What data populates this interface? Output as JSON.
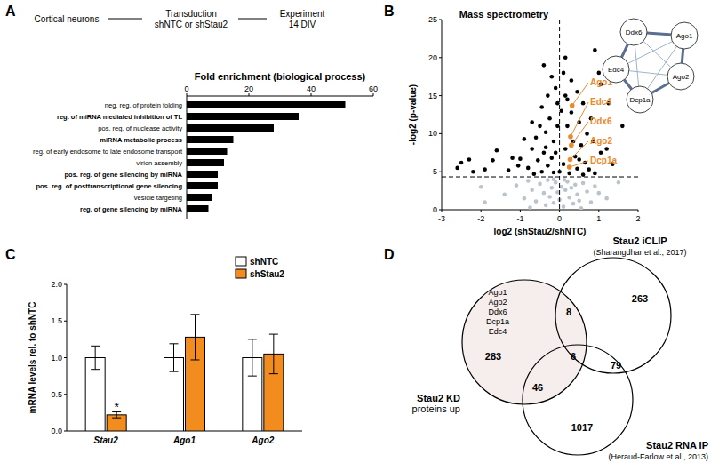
{
  "panel_labels": [
    "A",
    "B",
    "C",
    "D"
  ],
  "schematic": {
    "steps": [
      [
        "Cortical neurons"
      ],
      [
        "Transduction",
        "shNTC or shStau2"
      ],
      [
        "Experiment",
        "14 DIV"
      ]
    ]
  },
  "chart_data": [
    {
      "type": "bar",
      "orientation": "horizontal",
      "title": "Fold enrichment (biological process)",
      "categories": [
        "neg. reg. of protein folding",
        "reg. of miRNA mediated inhibition of TL",
        "pos. reg. of nuclease activity",
        "miRNA metabolic process",
        "reg. of early endosome to late endosome transport",
        "virion assembly",
        "pos. reg. of gene silencing by miRNA",
        "pos. reg. of posttranscriptional gene silencing",
        "vesicle targeting",
        "reg. of gene silencing by miRNA"
      ],
      "values": [
        51,
        36,
        28,
        15,
        13,
        12,
        10,
        10,
        8,
        7
      ],
      "color": "#000000",
      "xlim": [
        0,
        60
      ],
      "xticks": [
        0,
        20,
        40,
        60
      ]
    },
    {
      "type": "scatter",
      "title": "Mass spectrometry",
      "xlabel": "log2 (shStau2/shNTC)",
      "ylabel": "-log2 (p-value)",
      "xlim": [
        -3,
        2
      ],
      "xticks": [
        -3,
        -2,
        -1,
        0,
        1,
        2
      ],
      "ylim": [
        0,
        25
      ],
      "yticks": [
        0,
        5,
        10,
        15,
        20,
        25
      ],
      "reference_lines": [
        {
          "axis": "y",
          "value": 4.32
        },
        {
          "axis": "x",
          "value": 0
        }
      ],
      "series": [
        {
          "color": "#b8c5cf",
          "x": [
            -1.4,
            -1.1,
            -0.9,
            -0.8,
            -0.7,
            -0.6,
            -0.5,
            -0.4,
            -0.35,
            -0.3,
            -0.25,
            -0.2,
            -0.15,
            -0.1,
            -0.05,
            0,
            0.05,
            0.1,
            0.15,
            0.2,
            0.25,
            0.3,
            0.35,
            0.4,
            0.45,
            0.5,
            0.6,
            0.7,
            0.8,
            0.9,
            1.0,
            1.2,
            -1.9,
            -2.0,
            1.5,
            -0.75,
            0.55,
            -0.15,
            0.12
          ],
          "values": [
            2.0,
            3.2,
            1.5,
            3.8,
            2.6,
            1.1,
            3.4,
            2.2,
            0.6,
            3.9,
            1.7,
            2.9,
            0.9,
            3.6,
            2.3,
            1.3,
            3.0,
            0.4,
            2.6,
            3.7,
            1.6,
            2.9,
            0.8,
            3.3,
            2.0,
            1.2,
            3.5,
            2.4,
            1.0,
            3.1,
            2.2,
            1.5,
            1.0,
            3.0,
            3.6,
            0.3,
            0.2,
            4.0,
            3.95
          ]
        },
        {
          "color": "#000000",
          "x": [
            -2.5,
            -2.3,
            -2.6,
            -2.2,
            -1.9,
            -1.6,
            -1.7,
            -1.2,
            -1.0,
            -0.9,
            -1.3,
            -0.7,
            -0.45,
            -0.3,
            -0.2,
            -0.1,
            0.1,
            0.15,
            0.3,
            0.45,
            0.6,
            0.9,
            0.8,
            1.0,
            1.05,
            1.25,
            1.6,
            1.2,
            0.7,
            0.5,
            -0.5,
            -0.6,
            -0.35,
            -0.25,
            -0.15,
            -0.05,
            0.05,
            0.2,
            0.35,
            0.4,
            0.55,
            0.65,
            0.75,
            0.9,
            -0.8,
            -0.55,
            -0.4,
            -0.3,
            -0.2,
            -0.1,
            0.0,
            0.1,
            0.15,
            0.25,
            0.45,
            0.5,
            0.6,
            -0.65,
            -0.45,
            -0.15,
            0.3,
            -0.05,
            0.2,
            -0.35,
            -0.7,
            -1.05,
            1.05,
            1.35,
            0.85,
            0.15,
            -0.4
          ],
          "values": [
            6.2,
            6.6,
            5.5,
            5.0,
            5.3,
            7.8,
            6.5,
            6.8,
            6.7,
            9.3,
            5.2,
            8.0,
            13.5,
            15,
            17.5,
            16,
            18,
            15,
            17,
            15.5,
            14,
            21,
            12,
            18,
            16.5,
            14,
            11,
            8,
            10,
            11.5,
            11,
            9.5,
            10.2,
            12,
            9,
            11,
            13,
            11,
            9,
            7,
            8.5,
            6.2,
            5.3,
            4.8,
            5.5,
            6.5,
            7.5,
            5.8,
            6.8,
            7.5,
            5.0,
            6.0,
            8.0,
            4.8,
            5.4,
            6.6,
            4.6,
            4.7,
            5.0,
            4.9,
            12.8,
            14,
            14.5,
            8.2,
            11.5,
            5.8,
            7.5,
            6,
            9,
            20,
            19
          ]
        },
        {
          "color": "#e98a2f",
          "labels": [
            "Ago1",
            "Edc4",
            "Ddx6",
            "Ago2",
            "Dcp1a"
          ],
          "x": [
            0.32,
            0.28,
            0.3,
            0.27,
            0.25
          ],
          "values": [
            13.7,
            9.6,
            8.5,
            6.6,
            5.6
          ]
        }
      ]
    },
    {
      "type": "bar",
      "ylabel": "mRNA levels rel. to shNTC",
      "categories": [
        "Stau2",
        "Ago1",
        "Ago2"
      ],
      "ylim": [
        0,
        2
      ],
      "yticks": [
        {
          "value": 0,
          "label": "0.0"
        },
        {
          "value": 0.5,
          "label": "0.5"
        },
        {
          "value": 1,
          "label": "1.0"
        },
        {
          "value": 1.5,
          "label": "1.5"
        },
        {
          "value": 2,
          "label": "2.0"
        }
      ],
      "legend": "top-right",
      "series": [
        {
          "name": "shNTC",
          "color": "#ffffff",
          "values": [
            1.0,
            1.0,
            1.0
          ],
          "errors": [
            0.16,
            0.19,
            0.25
          ]
        },
        {
          "name": "shStau2",
          "color": "#f28c1e",
          "values": [
            0.22,
            1.28,
            1.05
          ],
          "errors": [
            0.04,
            0.31,
            0.27
          ]
        }
      ],
      "annotations": [
        {
          "text": "*",
          "category": 0,
          "series": 1
        }
      ]
    }
  ],
  "network": {
    "nodes": [
      "Ddx6",
      "Ago1",
      "Edc4",
      "Ago2",
      "Dcp1a"
    ],
    "edges": [
      [
        0,
        1
      ],
      [
        0,
        2
      ],
      [
        0,
        3
      ],
      [
        0,
        4
      ],
      [
        1,
        2
      ],
      [
        1,
        3
      ],
      [
        1,
        4
      ],
      [
        2,
        3
      ],
      [
        2,
        4
      ],
      [
        3,
        4
      ]
    ]
  },
  "venn": {
    "sets": [
      {
        "lines": [
          "Stau2 KD",
          "proteins up"
        ]
      },
      {
        "lines": [
          "Stau2 iCLIP",
          "(Sharangdhar et al., 2017)"
        ]
      },
      {
        "lines": [
          "Stau2 RNA IP",
          "(Heraud-Farlow et al., 2013)"
        ]
      }
    ],
    "regions": [
      {
        "sets": [
          0
        ],
        "value": 283
      },
      {
        "sets": [
          1
        ],
        "value": 263
      },
      {
        "sets": [
          2
        ],
        "value": 1017
      },
      {
        "sets": [
          0,
          1
        ],
        "value": 8
      },
      {
        "sets": [
          0,
          2
        ],
        "value": 46
      },
      {
        "sets": [
          1,
          2
        ],
        "value": 79
      },
      {
        "sets": [
          0,
          1,
          2
        ],
        "value": 6
      }
    ],
    "list": [
      "Ago1",
      "Ago2",
      "Ddx6",
      "Dcp1a",
      "Edc4"
    ]
  }
}
